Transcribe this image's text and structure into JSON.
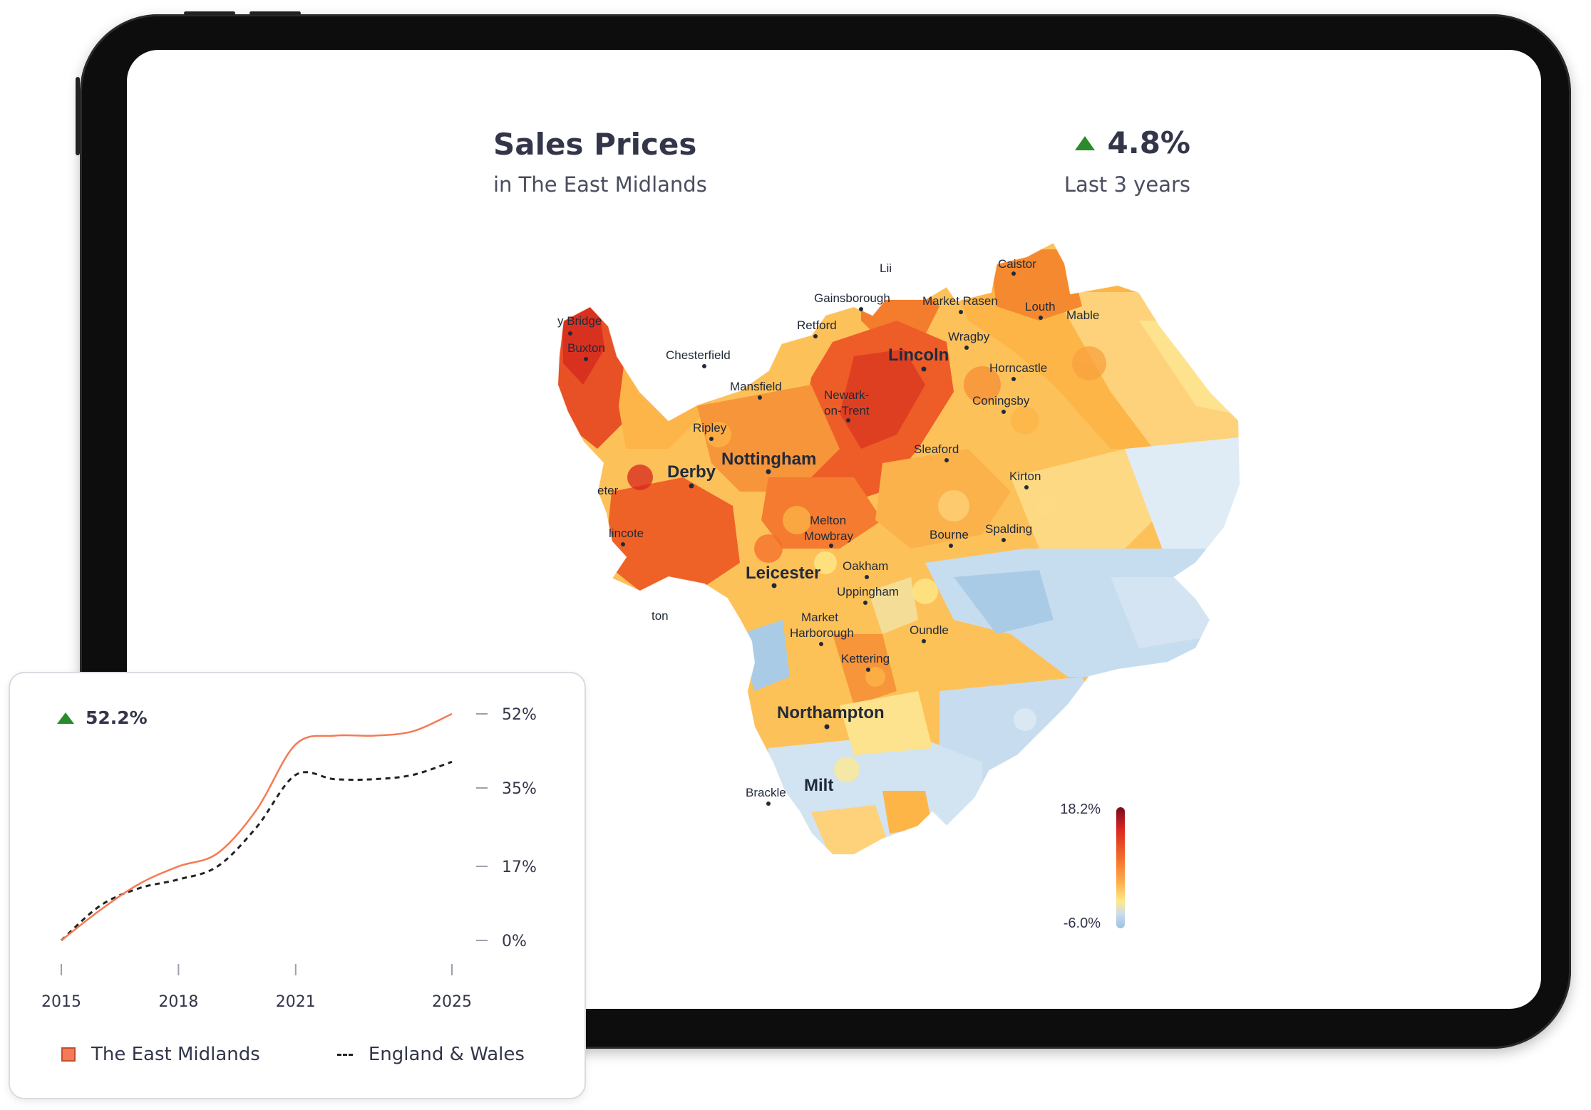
{
  "header": {
    "title": "Sales Prices",
    "subtitle": "in The East Midlands",
    "change_value": "4.8%",
    "change_period": "Last 3 years",
    "trend_icon": "triangle-up-icon"
  },
  "map": {
    "region": "The East Midlands",
    "places": [
      {
        "name": "Caistor",
        "size": "small"
      },
      {
        "name": "Lii",
        "size": "small"
      },
      {
        "name": "Gainsborough",
        "size": "small"
      },
      {
        "name": "Market Rasen",
        "size": "small"
      },
      {
        "name": "Louth",
        "size": "small"
      },
      {
        "name": "Mable",
        "size": "small"
      },
      {
        "name": "y Bridge",
        "size": "small"
      },
      {
        "name": "Retford",
        "size": "small"
      },
      {
        "name": "Wragby",
        "size": "small"
      },
      {
        "name": "Buxton",
        "size": "small"
      },
      {
        "name": "Chesterfield",
        "size": "small"
      },
      {
        "name": "Lincoln",
        "size": "large"
      },
      {
        "name": "Horncastle",
        "size": "small"
      },
      {
        "name": "Mansfield",
        "size": "small"
      },
      {
        "name": "Newark-",
        "size": "small"
      },
      {
        "name": "on-Trent",
        "size": "small"
      },
      {
        "name": "Coningsby",
        "size": "small"
      },
      {
        "name": "Ripley",
        "size": "small"
      },
      {
        "name": "Sleaford",
        "size": "small"
      },
      {
        "name": "Nottingham",
        "size": "large"
      },
      {
        "name": "Derby",
        "size": "large"
      },
      {
        "name": "Kirton",
        "size": "small"
      },
      {
        "name": "eter",
        "size": "small"
      },
      {
        "name": "Melton",
        "size": "small"
      },
      {
        "name": "Mowbray",
        "size": "small"
      },
      {
        "name": "Bourne",
        "size": "small"
      },
      {
        "name": "Spalding",
        "size": "small"
      },
      {
        "name": "lincote",
        "size": "small"
      },
      {
        "name": "Oakham",
        "size": "small"
      },
      {
        "name": "Leicester",
        "size": "large"
      },
      {
        "name": "Uppingham",
        "size": "small"
      },
      {
        "name": "ton",
        "size": "small"
      },
      {
        "name": "Market",
        "size": "small"
      },
      {
        "name": "Harborough",
        "size": "small"
      },
      {
        "name": "Oundle",
        "size": "small"
      },
      {
        "name": "Kettering",
        "size": "small"
      },
      {
        "name": "Northampton",
        "size": "large"
      },
      {
        "name": "Brackle",
        "size": "small"
      },
      {
        "name": "Milt",
        "size": "large"
      }
    ],
    "scale": {
      "max_label": "18.2%",
      "min_label": "-6.0%",
      "max": 18.2,
      "min": -6.0,
      "colors": [
        "#7a0c1e",
        "#d7261e",
        "#f46d2b",
        "#fdae4b",
        "#fee98b",
        "#c8dcef",
        "#9cc2e2"
      ]
    }
  },
  "card": {
    "change_value": "52.2%",
    "trend_icon": "triangle-up-icon",
    "legend": {
      "series_a": "The East Midlands",
      "series_b": "England & Wales"
    }
  },
  "chart_data": {
    "type": "line",
    "x_ticks": [
      "2015",
      "2018",
      "2021",
      "2025"
    ],
    "y_ticks": [
      "0%",
      "17%",
      "35%",
      "52%"
    ],
    "ylim": [
      0,
      52
    ],
    "xlim": [
      2015,
      2025
    ],
    "grid": false,
    "legend_position": "bottom",
    "series": [
      {
        "name": "The East Midlands",
        "color": "#f47b55",
        "style": "solid",
        "points": [
          [
            2015,
            0
          ],
          [
            2016,
            7
          ],
          [
            2017,
            13
          ],
          [
            2018,
            17
          ],
          [
            2019,
            20
          ],
          [
            2020,
            30
          ],
          [
            2021,
            45
          ],
          [
            2022,
            47
          ],
          [
            2023,
            47
          ],
          [
            2024,
            48
          ],
          [
            2025,
            52
          ]
        ]
      },
      {
        "name": "England & Wales",
        "color": "#222222",
        "style": "dashed",
        "points": [
          [
            2015,
            0
          ],
          [
            2016,
            8
          ],
          [
            2017,
            12
          ],
          [
            2018,
            14
          ],
          [
            2019,
            17
          ],
          [
            2020,
            26
          ],
          [
            2021,
            38
          ],
          [
            2022,
            37
          ],
          [
            2023,
            37
          ],
          [
            2024,
            38
          ],
          [
            2025,
            41
          ]
        ]
      }
    ]
  }
}
